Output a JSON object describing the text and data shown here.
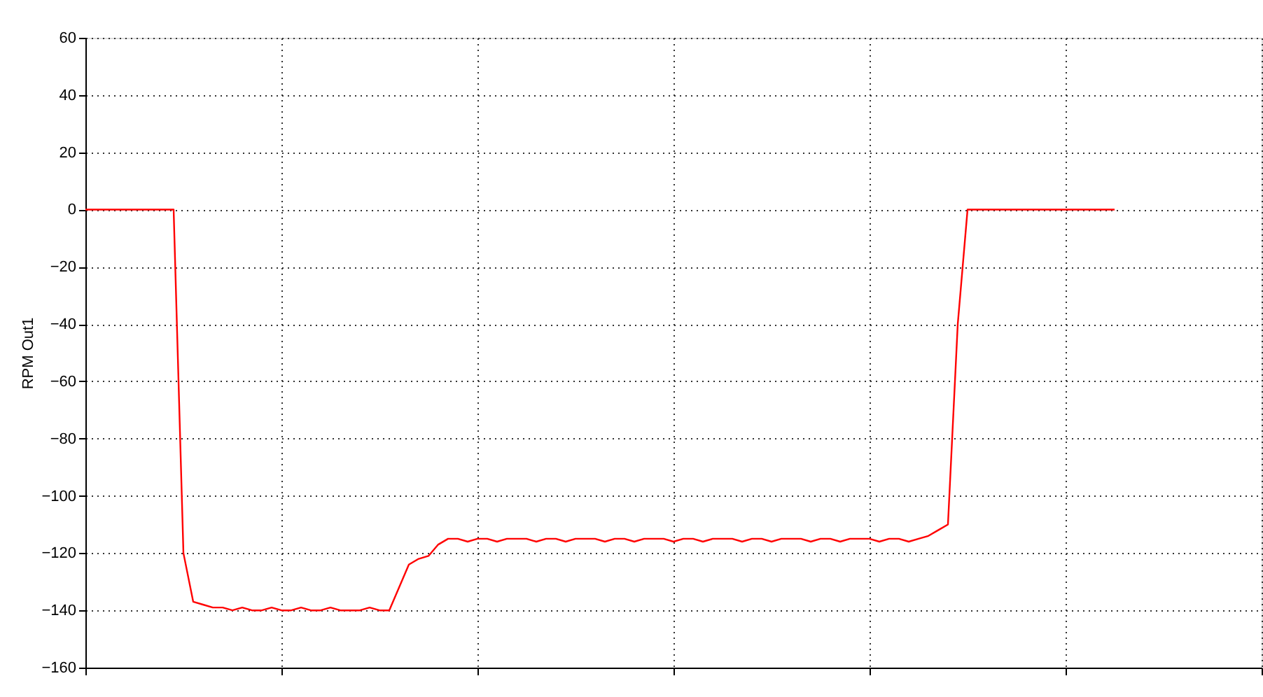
{
  "chart_data": {
    "type": "line",
    "ylabel": "RPM Out1",
    "categories": [
      null,
      null,
      null,
      null,
      null,
      null,
      null,
      null,
      null,
      null,
      null,
      null,
      null,
      null,
      null,
      null,
      null,
      null,
      null,
      null,
      null,
      null,
      null,
      null,
      null,
      null,
      null,
      null,
      null,
      null,
      null,
      null,
      null,
      null,
      null,
      null,
      null,
      null,
      null,
      null,
      null,
      null,
      null,
      null,
      null,
      null,
      null,
      null,
      null,
      null,
      null,
      null,
      null,
      null,
      null,
      null,
      null,
      null,
      null,
      null,
      null,
      null,
      null,
      null,
      null,
      null,
      null,
      null,
      null,
      null,
      null,
      null,
      null,
      null,
      null,
      null,
      null,
      null,
      null,
      null,
      null,
      null,
      null,
      null,
      null,
      null,
      null,
      null,
      null,
      null,
      null,
      null,
      null,
      null,
      null,
      null,
      null,
      null,
      null,
      null,
      null,
      null,
      null,
      null,
      null,
      null,
      null,
      null,
      null,
      null,
      null,
      null,
      null,
      null,
      null,
      null,
      null,
      null,
      null,
      null,
      null
    ],
    "series": [
      {
        "color": "#ff0000",
        "values": [
          0,
          0,
          0,
          0,
          0,
          0,
          0,
          0,
          0,
          0,
          -120,
          -137,
          -138,
          -139,
          -139,
          -140,
          -139,
          -140,
          -140,
          -139,
          -140,
          -140,
          -139,
          -140,
          -140,
          -139,
          -140,
          -140,
          -140,
          -139,
          -140,
          -140,
          -132,
          -124,
          -122,
          -121,
          -117,
          -115,
          -115,
          -116,
          -115,
          -115,
          -116,
          -115,
          -115,
          -115,
          -116,
          -115,
          -115,
          -116,
          -115,
          -115,
          -115,
          -116,
          -115,
          -115,
          -116,
          -115,
          -115,
          -115,
          -116,
          -115,
          -115,
          -116,
          -115,
          -115,
          -115,
          -116,
          -115,
          -115,
          -116,
          -115,
          -115,
          -115,
          -116,
          -115,
          -115,
          -116,
          -115,
          -115,
          -115,
          -116,
          -115,
          -115,
          -116,
          -115,
          -114,
          -112,
          -110,
          -40,
          0,
          0,
          0,
          0,
          0,
          0,
          0,
          0,
          0,
          0,
          0,
          0,
          0,
          0,
          0,
          0,
          null,
          null,
          null,
          null,
          null,
          null,
          null,
          null,
          null,
          null,
          null,
          null,
          null,
          null,
          null
        ]
      }
    ],
    "ylim": [
      -160,
      60
    ],
    "yticks": [
      -160,
      -140,
      -120,
      -100,
      -80,
      -60,
      -40,
      -20,
      0,
      20,
      40,
      60
    ],
    "grid": true,
    "tick_labels": "y",
    "marker": "none",
    "line_style": "solid"
  }
}
